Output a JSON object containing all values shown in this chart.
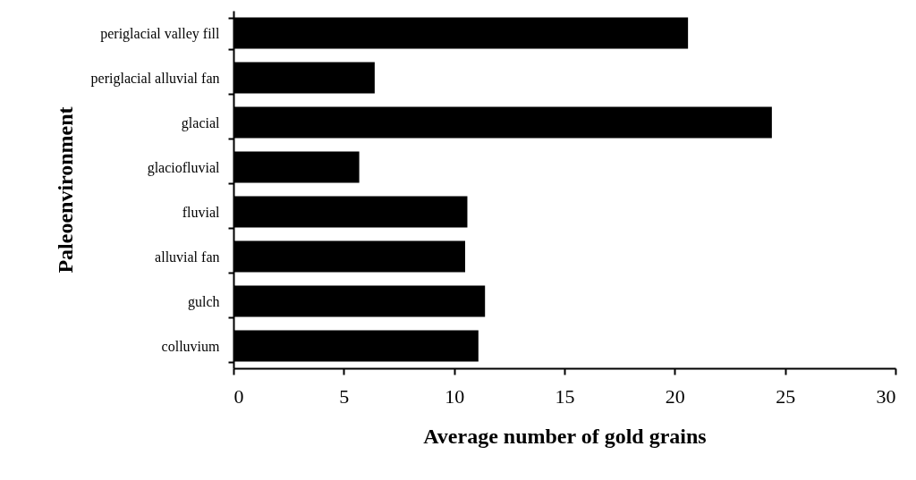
{
  "chart_data": {
    "type": "bar",
    "orientation": "horizontal",
    "xlabel": "Average number of gold grains",
    "ylabel": "Paleoenvironment",
    "categories": [
      "periglacial valley fill",
      "periglacial alluvial fan",
      "glacial",
      "glaciofluvial",
      "fluvial",
      "alluvial fan",
      "gulch",
      "colluvium"
    ],
    "values": [
      20.6,
      6.4,
      24.4,
      5.7,
      10.6,
      10.5,
      11.4,
      11.1
    ],
    "color": "#000000",
    "xlim": [
      0,
      30
    ],
    "xticks": [
      0,
      5,
      10,
      15,
      20,
      25,
      30
    ],
    "grid": false
  }
}
